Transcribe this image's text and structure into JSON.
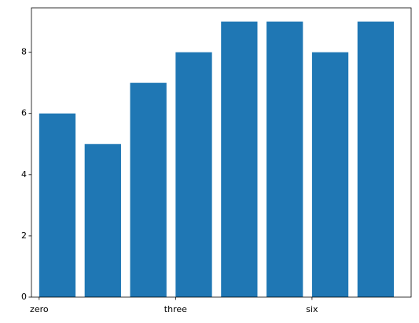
{
  "chart_data": {
    "type": "bar",
    "x": [
      0,
      1,
      2,
      3,
      4,
      5,
      6,
      7
    ],
    "values": [
      6,
      5,
      7,
      8,
      9,
      9,
      8,
      9
    ],
    "color": "#1f77b4",
    "xlim": [
      -0.17,
      8.18
    ],
    "xticks": [
      {
        "value": 0,
        "label": "zero"
      },
      {
        "value": 3,
        "label": "three"
      },
      {
        "value": 6,
        "label": "six"
      }
    ],
    "ylim": [
      0,
      9.45
    ],
    "yticks": [
      0,
      2,
      4,
      6,
      8
    ],
    "grid": false
  }
}
